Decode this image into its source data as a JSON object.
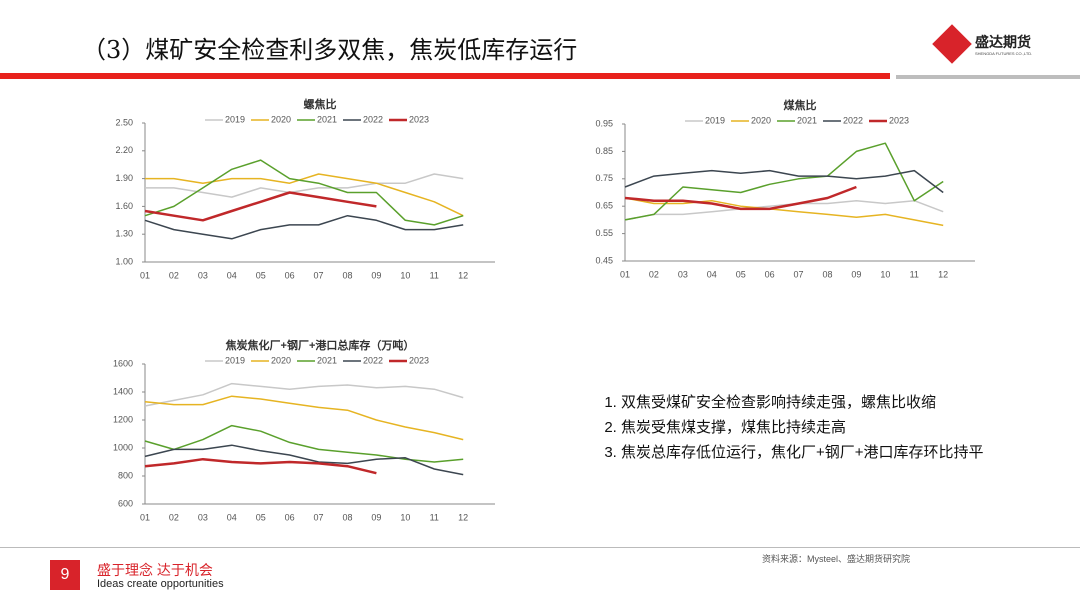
{
  "header": {
    "title": "（3）煤矿安全检查利多双焦，焦炭低库存运行",
    "logo": "盛达期货",
    "logo_en": "SHENGDA FUTURES CO.,LTD."
  },
  "chart_data": [
    {
      "type": "line",
      "title": "螺焦比",
      "categories": [
        "01",
        "02",
        "03",
        "04",
        "05",
        "06",
        "07",
        "08",
        "09",
        "10",
        "11",
        "12"
      ],
      "ylim": [
        1.0,
        2.5
      ],
      "yticks": [
        {
          "value": 1.0,
          "label": "1.00"
        },
        {
          "value": 1.3,
          "label": "1.30"
        },
        {
          "value": 1.6,
          "label": "1.60"
        },
        {
          "value": 1.9,
          "label": "1.90"
        },
        {
          "value": 2.2,
          "label": "2.20"
        },
        {
          "value": 2.5,
          "label": "2.50"
        }
      ],
      "series": [
        {
          "name": "2019",
          "color": "#c8c8c8",
          "values": [
            1.8,
            1.8,
            1.75,
            1.7,
            1.8,
            1.75,
            1.8,
            1.8,
            1.85,
            1.85,
            1.95,
            1.9
          ]
        },
        {
          "name": "2020",
          "color": "#e6b422",
          "values": [
            1.9,
            1.9,
            1.85,
            1.9,
            1.9,
            1.85,
            1.95,
            1.9,
            1.85,
            1.75,
            1.65,
            1.5
          ]
        },
        {
          "name": "2021",
          "color": "#5aa02c",
          "values": [
            1.5,
            1.6,
            1.8,
            2.0,
            2.1,
            1.9,
            1.85,
            1.75,
            1.75,
            1.45,
            1.4,
            1.5
          ]
        },
        {
          "name": "2022",
          "color": "#3c4650",
          "values": [
            1.45,
            1.35,
            1.3,
            1.25,
            1.35,
            1.4,
            1.4,
            1.5,
            1.45,
            1.35,
            1.35,
            1.4
          ]
        },
        {
          "name": "2023",
          "color": "#c0282a",
          "values": [
            1.55,
            1.5,
            1.45,
            1.55,
            1.65,
            1.75,
            1.7,
            1.65,
            1.6,
            null,
            null,
            null
          ]
        }
      ]
    },
    {
      "type": "line",
      "title": "煤焦比",
      "categories": [
        "01",
        "02",
        "03",
        "04",
        "05",
        "06",
        "07",
        "08",
        "09",
        "10",
        "11",
        "12"
      ],
      "ylim": [
        0.45,
        0.95
      ],
      "yticks": [
        0.45,
        0.55,
        0.65,
        0.75,
        0.85,
        0.95
      ],
      "series": [
        {
          "name": "2019",
          "color": "#c8c8c8",
          "values": [
            0.6,
            0.62,
            0.62,
            0.63,
            0.64,
            0.65,
            0.66,
            0.66,
            0.67,
            0.66,
            0.67,
            0.63
          ]
        },
        {
          "name": "2020",
          "color": "#e6b422",
          "values": [
            0.68,
            0.66,
            0.66,
            0.67,
            0.65,
            0.64,
            0.63,
            0.62,
            0.61,
            0.62,
            0.6,
            0.58
          ]
        },
        {
          "name": "2021",
          "color": "#5aa02c",
          "values": [
            0.6,
            0.62,
            0.72,
            0.71,
            0.7,
            0.73,
            0.75,
            0.76,
            0.85,
            0.88,
            0.67,
            0.74
          ]
        },
        {
          "name": "2022",
          "color": "#3c4650",
          "values": [
            0.72,
            0.76,
            0.77,
            0.78,
            0.77,
            0.78,
            0.76,
            0.76,
            0.75,
            0.76,
            0.78,
            0.7
          ]
        },
        {
          "name": "2023",
          "color": "#c0282a",
          "values": [
            0.68,
            0.67,
            0.67,
            0.66,
            0.64,
            0.64,
            0.66,
            0.68,
            0.72,
            null,
            null,
            null
          ]
        }
      ]
    },
    {
      "type": "line",
      "title": "焦炭焦化厂+钢厂+港口总库存（万吨）",
      "categories": [
        "01",
        "02",
        "03",
        "04",
        "05",
        "06",
        "07",
        "08",
        "09",
        "10",
        "11",
        "12"
      ],
      "ylim": [
        600,
        1600
      ],
      "yticks": [
        600,
        800,
        1000,
        1200,
        1400,
        1600
      ],
      "series": [
        {
          "name": "2019",
          "color": "#c8c8c8",
          "values": [
            1300,
            1340,
            1380,
            1460,
            1440,
            1420,
            1440,
            1450,
            1430,
            1440,
            1420,
            1360
          ]
        },
        {
          "name": "2020",
          "color": "#e6b422",
          "values": [
            1330,
            1310,
            1310,
            1370,
            1350,
            1320,
            1290,
            1270,
            1200,
            1150,
            1110,
            1060
          ]
        },
        {
          "name": "2021",
          "color": "#5aa02c",
          "values": [
            1050,
            990,
            1060,
            1160,
            1120,
            1040,
            990,
            970,
            950,
            920,
            900,
            920
          ]
        },
        {
          "name": "2022",
          "color": "#3c4650",
          "values": [
            940,
            990,
            990,
            1020,
            980,
            950,
            900,
            890,
            920,
            930,
            850,
            810
          ]
        },
        {
          "name": "2023",
          "color": "#c0282a",
          "values": [
            870,
            890,
            920,
            900,
            890,
            900,
            890,
            870,
            820,
            null,
            null,
            null
          ]
        }
      ]
    }
  ],
  "points": [
    "双焦受煤矿安全检查影响持续走强，螺焦比收缩",
    "焦炭受焦煤支撑，煤焦比持续走高",
    "焦炭总库存低位运行，焦化厂+钢厂+港口库存环比持平"
  ],
  "footer": {
    "source": "资料来源：Mysteel、盛达期货研究院",
    "page": "9",
    "slogan": "盛于理念 达于机会",
    "slogan_en": "Ideas create opportunities"
  }
}
